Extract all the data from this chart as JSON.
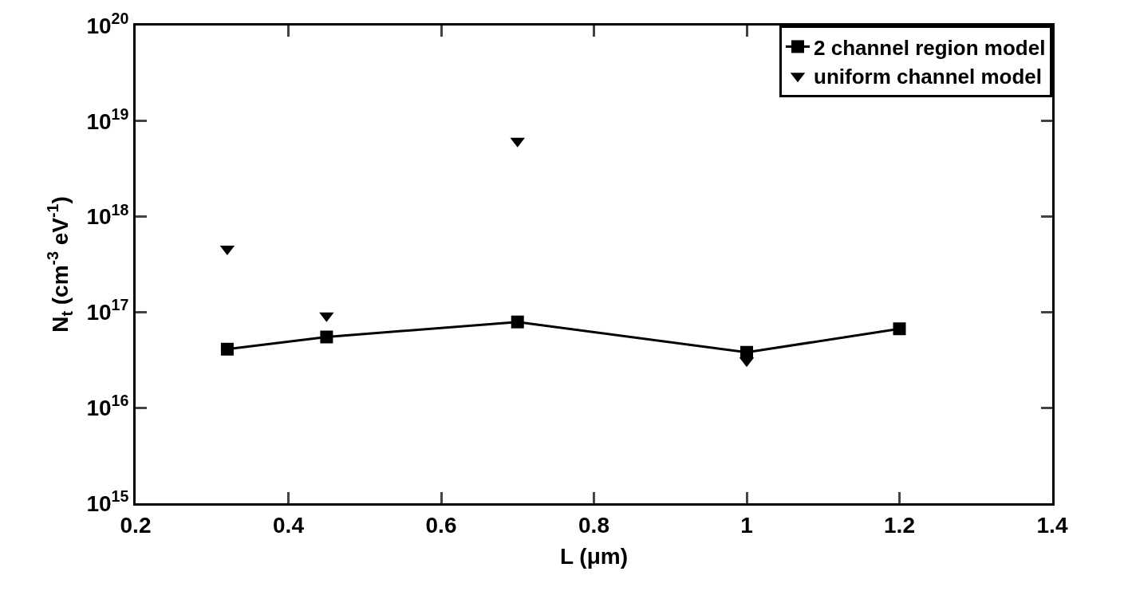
{
  "chart_data": {
    "type": "line",
    "xlabel": "L (μm)",
    "ylabel": "N$_{t}$ (cm$^{-3}$ eV$^{-1}$)",
    "log": "y",
    "legend": "top right",
    "xlim": [
      0.2,
      1.4
    ],
    "xticks": [
      0.2,
      0.4,
      0.6,
      0.8,
      1,
      1.2,
      1.4
    ],
    "ylim": [
      1000000000000000.0,
      1e+20
    ],
    "yticks": [
      {
        "value": 1000000000000000.0,
        "label": "10$^{15}$"
      },
      {
        "value": 1e+16,
        "label": "10$^{16}$"
      },
      {
        "value": 1e+17,
        "label": "10$^{17}$"
      },
      {
        "value": 1e+18,
        "label": "10$^{18}$"
      },
      {
        "value": 1e+19,
        "label": "10$^{19}$"
      },
      {
        "value": 1e+20,
        "label": "10$^{20}$"
      }
    ],
    "series": [
      {
        "name": "2 channel region model",
        "marker": "square",
        "color": "#000000",
        "x": [
          0.32,
          0.45,
          0.7,
          1.0,
          1.2
        ],
        "values": [
          4.1e+16,
          5.5e+16,
          7.9e+16,
          3.8e+16,
          6.7e+16
        ]
      },
      {
        "name": "uniform channel model",
        "type": "scatter",
        "marker": "triangle",
        "color": "#000000",
        "x": [
          0.32,
          0.45,
          0.7,
          1.0
        ],
        "values": [
          4.6e+17,
          9.2e+16,
          6.2e+18,
          3.1e+16
        ]
      }
    ]
  }
}
